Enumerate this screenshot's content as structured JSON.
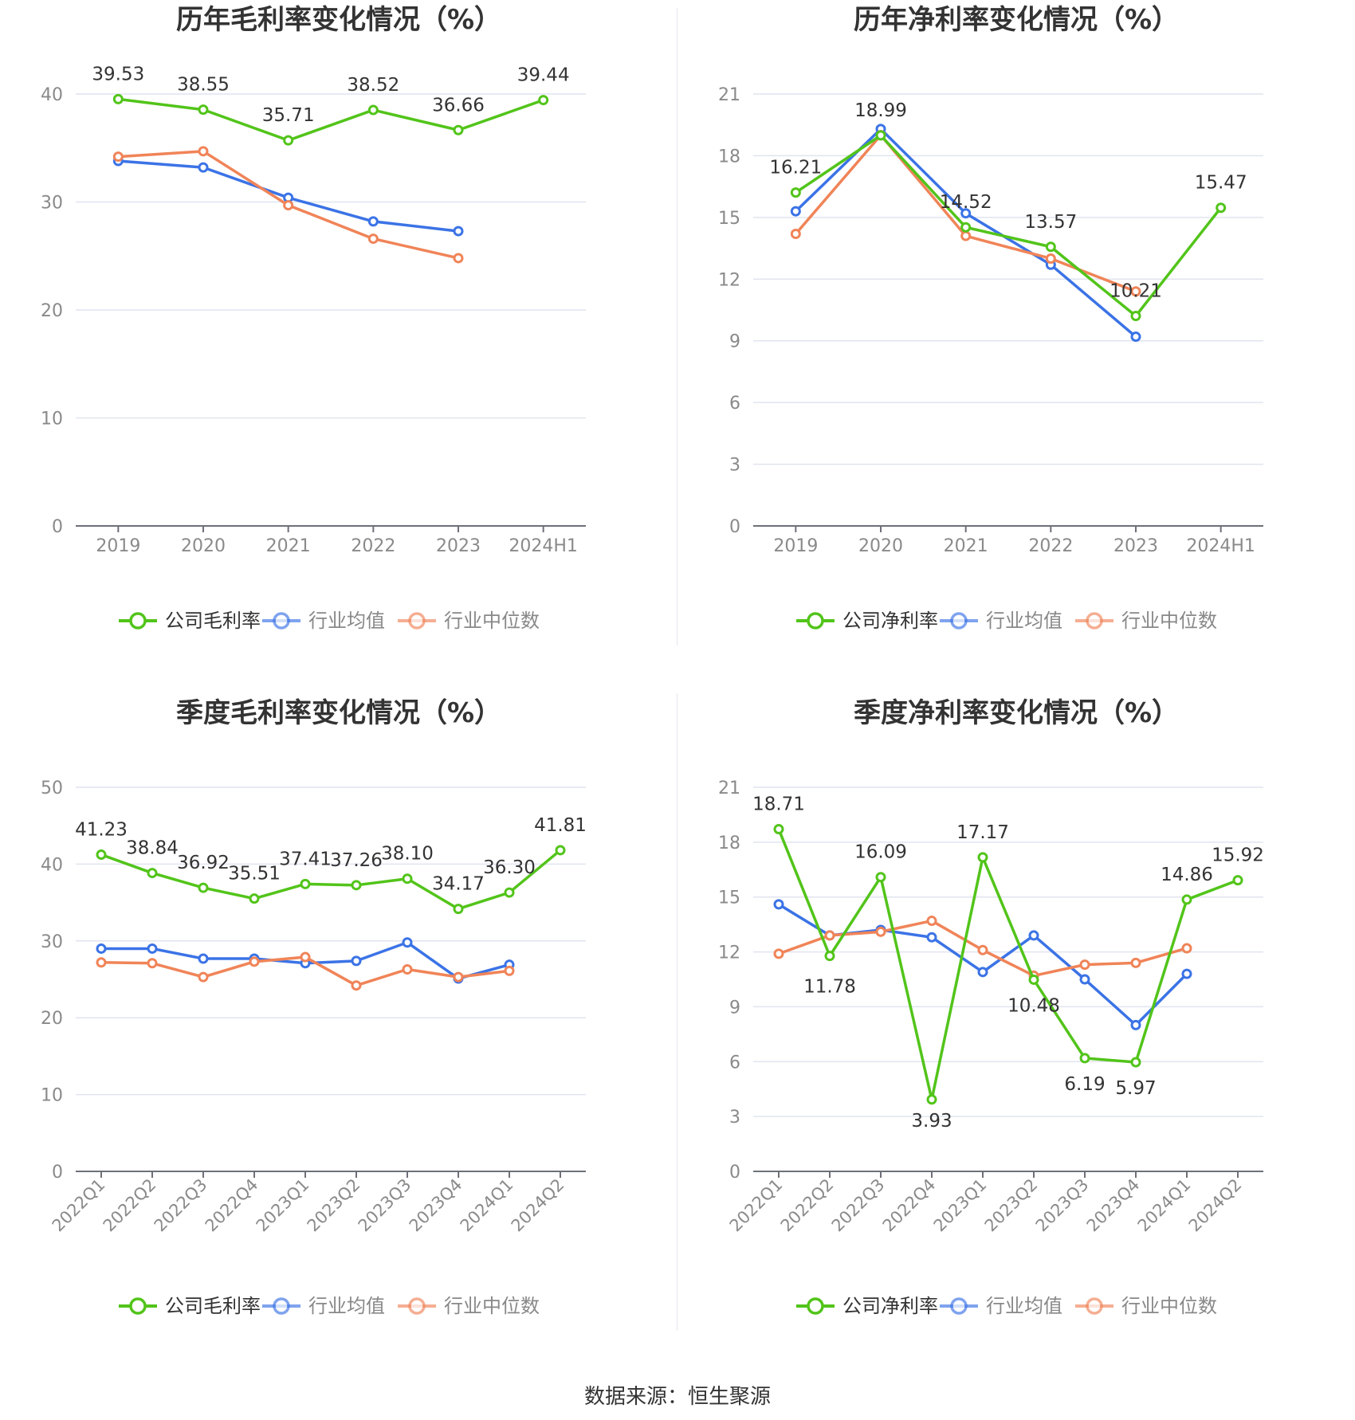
{
  "colors": {
    "company": "#52c41a",
    "avg": "#3b73e6",
    "median": "#f08458",
    "grid": "#e0e4ef",
    "axis": "#6e7079",
    "label": "#333333",
    "tick": "#8a8a8a"
  },
  "legend_labels": {
    "gross": [
      "公司毛利率",
      "行业均值",
      "行业中位数"
    ],
    "net": [
      "公司净利率",
      "行业均值",
      "行业中位数"
    ]
  },
  "source": "数据来源：恒生聚源",
  "chart_data": [
    {
      "id": "annual-gross",
      "type": "line",
      "title": "历年毛利率变化情况（%）",
      "categories": [
        "2019",
        "2020",
        "2021",
        "2022",
        "2023",
        "2024H1"
      ],
      "ylim": [
        0,
        40
      ],
      "yticks": [
        0,
        10,
        20,
        30,
        40
      ],
      "rotate_x": false,
      "grid": true,
      "legend": "bottom",
      "series": [
        {
          "name": "公司毛利率",
          "key": "company",
          "values": [
            39.53,
            38.55,
            35.71,
            38.52,
            36.66,
            39.44
          ],
          "labels": [
            "39.53",
            "38.55",
            "35.71",
            "38.52",
            "36.66",
            "39.44"
          ]
        },
        {
          "name": "行业均值",
          "key": "avg",
          "values": [
            33.8,
            33.2,
            30.4,
            28.2,
            27.3,
            null
          ]
        },
        {
          "name": "行业中位数",
          "key": "median",
          "values": [
            34.2,
            34.7,
            29.7,
            26.6,
            24.8,
            null
          ]
        }
      ]
    },
    {
      "id": "annual-net",
      "type": "line",
      "title": "历年净利率变化情况（%）",
      "categories": [
        "2019",
        "2020",
        "2021",
        "2022",
        "2023",
        "2024H1"
      ],
      "ylim": [
        0,
        21
      ],
      "yticks": [
        0,
        3,
        6,
        9,
        12,
        15,
        18,
        21
      ],
      "rotate_x": false,
      "grid": true,
      "legend": "bottom",
      "series": [
        {
          "name": "公司净利率",
          "key": "company",
          "values": [
            16.21,
            18.99,
            14.52,
            13.57,
            10.21,
            15.47
          ],
          "labels": [
            "16.21",
            "18.99",
            "14.52",
            "13.57",
            "10.21",
            "15.47"
          ]
        },
        {
          "name": "行业均值",
          "key": "avg",
          "values": [
            15.3,
            19.3,
            15.2,
            12.7,
            9.2,
            null
          ]
        },
        {
          "name": "行业中位数",
          "key": "median",
          "values": [
            14.2,
            19.0,
            14.1,
            13.0,
            11.4,
            null
          ]
        }
      ]
    },
    {
      "id": "quarterly-gross",
      "type": "line",
      "title": "季度毛利率变化情况（%）",
      "categories": [
        "2022Q1",
        "2022Q2",
        "2022Q3",
        "2022Q4",
        "2023Q1",
        "2023Q2",
        "2023Q3",
        "2023Q4",
        "2024Q1",
        "2024Q2"
      ],
      "ylim": [
        0,
        50
      ],
      "yticks": [
        0,
        10,
        20,
        30,
        40,
        50
      ],
      "rotate_x": true,
      "grid": true,
      "legend": "bottom",
      "series": [
        {
          "name": "公司毛利率",
          "key": "company",
          "values": [
            41.23,
            38.84,
            36.92,
            35.51,
            37.41,
            37.26,
            38.1,
            34.17,
            36.3,
            41.81
          ],
          "labels": [
            "41.23",
            "38.84",
            "36.92",
            "35.51",
            "37.41",
            "37.26",
            "38.10",
            "34.17",
            "36.30",
            "41.81"
          ]
        },
        {
          "name": "行业均值",
          "key": "avg",
          "values": [
            29.0,
            29.0,
            27.7,
            27.7,
            27.1,
            27.4,
            29.8,
            25.1,
            26.9,
            null
          ]
        },
        {
          "name": "行业中位数",
          "key": "median",
          "values": [
            27.2,
            27.1,
            25.3,
            27.3,
            27.9,
            24.2,
            26.3,
            25.3,
            26.1,
            null
          ]
        }
      ]
    },
    {
      "id": "quarterly-net",
      "type": "line",
      "title": "季度净利率变化情况（%）",
      "categories": [
        "2022Q1",
        "2022Q2",
        "2022Q3",
        "2022Q4",
        "2023Q1",
        "2023Q2",
        "2023Q3",
        "2023Q4",
        "2024Q1",
        "2024Q2"
      ],
      "ylim": [
        0,
        21
      ],
      "yticks": [
        0,
        3,
        6,
        9,
        12,
        15,
        18,
        21
      ],
      "rotate_x": true,
      "grid": true,
      "legend": "bottom",
      "series": [
        {
          "name": "公司净利率",
          "key": "company",
          "values": [
            18.71,
            11.78,
            16.09,
            3.93,
            17.17,
            10.48,
            6.19,
            5.97,
            14.86,
            15.92
          ],
          "labels": [
            "18.71",
            "11.78",
            "16.09",
            "3.93",
            "17.17",
            "10.48",
            "6.19",
            "5.97",
            "14.86",
            "15.92"
          ]
        },
        {
          "name": "行业均值",
          "key": "avg",
          "values": [
            14.6,
            12.9,
            13.2,
            12.8,
            10.9,
            12.9,
            10.5,
            8.0,
            10.8,
            null
          ]
        },
        {
          "name": "行业中位数",
          "key": "median",
          "values": [
            11.9,
            12.9,
            13.1,
            13.7,
            12.1,
            10.7,
            11.3,
            11.4,
            12.2,
            null
          ]
        }
      ]
    }
  ]
}
